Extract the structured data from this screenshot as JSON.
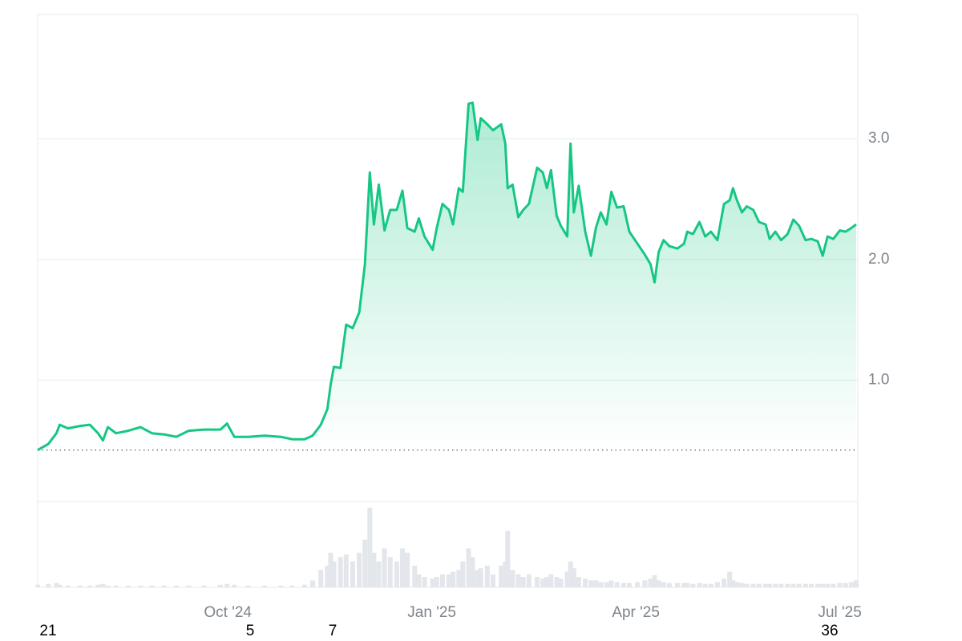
{
  "chart_data": {
    "type": "area",
    "color": "#16c784",
    "x": [
      2024.517,
      2024.53,
      2024.54,
      2024.544,
      2024.554,
      2024.569,
      2024.581,
      2024.591,
      2024.597,
      2024.603,
      2024.613,
      2024.628,
      2024.643,
      2024.657,
      2024.672,
      2024.687,
      2024.702,
      2024.721,
      2024.741,
      2024.749,
      2024.758,
      2024.775,
      2024.795,
      2024.815,
      2024.829,
      2024.844,
      2024.854,
      2024.864,
      2024.872,
      2024.876,
      2024.88,
      2024.888,
      2024.895,
      2024.903,
      2024.911,
      2024.918,
      2024.924,
      2024.929,
      2024.935,
      2024.942,
      2024.949,
      2024.957,
      2024.964,
      2024.97,
      2024.979,
      2024.984,
      2024.991,
      2025.001,
      2025.006,
      2025.013,
      2025.021,
      2025.026,
      2025.033,
      2025.038,
      2025.045,
      2025.05,
      2025.056,
      2025.06,
      2025.068,
      2025.075,
      2025.085,
      2025.09,
      2025.093,
      2025.099,
      2025.106,
      2025.112,
      2025.119,
      2025.129,
      2025.136,
      2025.141,
      2025.146,
      2025.153,
      2025.158,
      2025.166,
      2025.17,
      2025.174,
      2025.18,
      2025.188,
      2025.195,
      2025.201,
      2025.207,
      2025.214,
      2025.22,
      2025.227,
      2025.235,
      2025.242,
      2025.252,
      2025.261,
      2025.268,
      2025.273,
      2025.278,
      2025.284,
      2025.291,
      2025.301,
      2025.309,
      2025.313,
      2025.32,
      2025.328,
      2025.335,
      2025.342,
      2025.35,
      2025.358,
      2025.365,
      2025.369,
      2025.374,
      2025.38,
      2025.386,
      2025.394,
      2025.401,
      2025.409,
      2025.414,
      2025.421,
      2025.428,
      2025.436,
      2025.443,
      2025.45,
      2025.458,
      2025.465,
      2025.473,
      2025.479,
      2025.485,
      2025.492,
      2025.5,
      2025.507,
      2025.514,
      2025.52
    ],
    "values": [
      0.42,
      0.47,
      0.56,
      0.63,
      0.6,
      0.62,
      0.63,
      0.56,
      0.5,
      0.61,
      0.56,
      0.58,
      0.61,
      0.56,
      0.55,
      0.53,
      0.58,
      0.59,
      0.59,
      0.64,
      0.53,
      0.53,
      0.54,
      0.53,
      0.51,
      0.51,
      0.54,
      0.63,
      0.76,
      0.96,
      1.11,
      1.1,
      1.46,
      1.43,
      1.56,
      1.96,
      2.72,
      2.29,
      2.62,
      2.24,
      2.41,
      2.41,
      2.57,
      2.26,
      2.23,
      2.34,
      2.19,
      2.08,
      2.26,
      2.46,
      2.41,
      2.29,
      2.59,
      2.56,
      3.29,
      3.3,
      2.99,
      3.17,
      3.12,
      3.07,
      3.12,
      2.96,
      2.59,
      2.62,
      2.35,
      2.41,
      2.46,
      2.76,
      2.72,
      2.59,
      2.74,
      2.36,
      2.28,
      2.19,
      2.96,
      2.39,
      2.61,
      2.23,
      2.03,
      2.26,
      2.39,
      2.29,
      2.56,
      2.43,
      2.44,
      2.23,
      2.13,
      2.04,
      1.96,
      1.81,
      2.06,
      2.16,
      2.11,
      2.09,
      2.13,
      2.23,
      2.21,
      2.31,
      2.19,
      2.23,
      2.16,
      2.46,
      2.49,
      2.59,
      2.49,
      2.39,
      2.44,
      2.41,
      2.31,
      2.29,
      2.17,
      2.23,
      2.16,
      2.21,
      2.33,
      2.28,
      2.16,
      2.17,
      2.15,
      2.03,
      2.19,
      2.17,
      2.24,
      2.23,
      2.26,
      2.29
    ],
    "volume": {
      "color": "#e3e6ea",
      "lim": [
        0,
        100
      ],
      "values": [
        3,
        4,
        5,
        3,
        2,
        2,
        2,
        3,
        4,
        2,
        2,
        2,
        2,
        2,
        2,
        2,
        2,
        2,
        3,
        4,
        3,
        2,
        2,
        2,
        2,
        3,
        8,
        20,
        25,
        40,
        30,
        35,
        38,
        30,
        40,
        55,
        92,
        40,
        30,
        45,
        35,
        30,
        45,
        40,
        25,
        15,
        12,
        10,
        12,
        15,
        15,
        18,
        20,
        30,
        45,
        35,
        20,
        22,
        25,
        15,
        25,
        30,
        65,
        20,
        15,
        12,
        15,
        12,
        10,
        12,
        15,
        12,
        10,
        18,
        30,
        22,
        12,
        10,
        8,
        8,
        6,
        6,
        8,
        6,
        5,
        5,
        6,
        8,
        10,
        14,
        8,
        6,
        5,
        5,
        5,
        5,
        4,
        5,
        4,
        4,
        6,
        10,
        18,
        8,
        6,
        5,
        4,
        4,
        4,
        4,
        4,
        4,
        4,
        4,
        4,
        4,
        4,
        4,
        4,
        4,
        4,
        4,
        5,
        5,
        6,
        8
      ]
    },
    "reference_line": 0.42,
    "xlim": [
      2024.517,
      2025.522
    ],
    "xticks": [
      {
        "value": 2024.75,
        "label": "Oct '24"
      },
      {
        "value": 2025.0,
        "label": "Jan '25"
      },
      {
        "value": 2025.25,
        "label": "Apr '25"
      },
      {
        "value": 2025.5,
        "label": "Jul '25"
      }
    ],
    "ylim": [
      0,
      4.03
    ],
    "yticks": [
      {
        "value": 1,
        "label": "1.0"
      },
      {
        "value": 2,
        "label": "2.0"
      },
      {
        "value": 3,
        "label": "3.0"
      }
    ],
    "grid": true,
    "footer_labels": [
      "21",
      "5",
      "7",
      "36"
    ]
  }
}
